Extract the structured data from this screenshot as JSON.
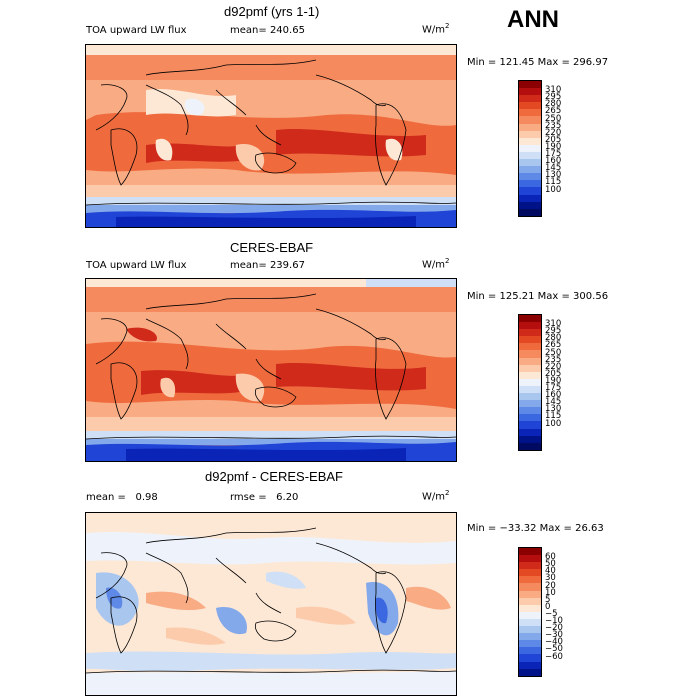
{
  "season": "ANN",
  "panels": [
    {
      "title": "d92pmf (yrs 1-1)",
      "variable": "TOA upward LW flux",
      "mean_label": "mean=",
      "mean_value": "240.65",
      "units": "W/m",
      "units_sup": "2",
      "minmax": "Min = 121.45 Max = 296.97",
      "colorbar": {
        "colors": [
          "#8b0000",
          "#b40e0e",
          "#cf2a1a",
          "#e34a24",
          "#ef6b3e",
          "#f58a5f",
          "#f9ab84",
          "#fccbab",
          "#fde8d6",
          "#eef3fb",
          "#cfdff5",
          "#a9c6ef",
          "#84a9ea",
          "#5f89e6",
          "#3b68e0",
          "#1f44d6",
          "#0a24b8",
          "#001288",
          "#000a60"
        ],
        "labels": [
          "310",
          "295",
          "280",
          "265",
          "250",
          "235",
          "220",
          "205",
          "190",
          "175",
          "160",
          "145",
          "130",
          "115",
          "100"
        ]
      }
    },
    {
      "title": "CERES-EBAF",
      "variable": "TOA upward LW flux",
      "mean_label": "mean=",
      "mean_value": "239.67",
      "units": "W/m",
      "units_sup": "2",
      "minmax": "Min = 125.21 Max = 300.56",
      "colorbar": {
        "colors": [
          "#8b0000",
          "#b40e0e",
          "#cf2a1a",
          "#e34a24",
          "#ef6b3e",
          "#f58a5f",
          "#f9ab84",
          "#fccbab",
          "#fde8d6",
          "#eef3fb",
          "#cfdff5",
          "#a9c6ef",
          "#84a9ea",
          "#5f89e6",
          "#3b68e0",
          "#1f44d6",
          "#0a24b8",
          "#001288",
          "#000a60"
        ],
        "labels": [
          "310",
          "295",
          "280",
          "265",
          "250",
          "235",
          "220",
          "205",
          "190",
          "175",
          "160",
          "145",
          "130",
          "115",
          "100"
        ]
      }
    },
    {
      "title": "d92pmf - CERES-EBAF",
      "mean_label": "mean =",
      "mean_value": "0.98",
      "rmse_label": "rmse =",
      "rmse_value": "6.20",
      "units": "W/m",
      "units_sup": "2",
      "minmax": "Min = −33.32 Max =  26.63",
      "colorbar": {
        "colors": [
          "#8b0000",
          "#b40e0e",
          "#cf2a1a",
          "#e34a24",
          "#ef6b3e",
          "#f58a5f",
          "#f9ab84",
          "#fccbab",
          "#fde8d6",
          "#eef3fb",
          "#cfdff5",
          "#a9c6ef",
          "#84a9ea",
          "#5f89e6",
          "#3b68e0",
          "#1f44d6",
          "#0a24b8",
          "#001288"
        ],
        "labels": [
          "60",
          "50",
          "40",
          "30",
          "20",
          "10",
          "5",
          "0",
          "−5",
          "−10",
          "−20",
          "−30",
          "−40",
          "−50",
          "−60"
        ]
      }
    }
  ]
}
